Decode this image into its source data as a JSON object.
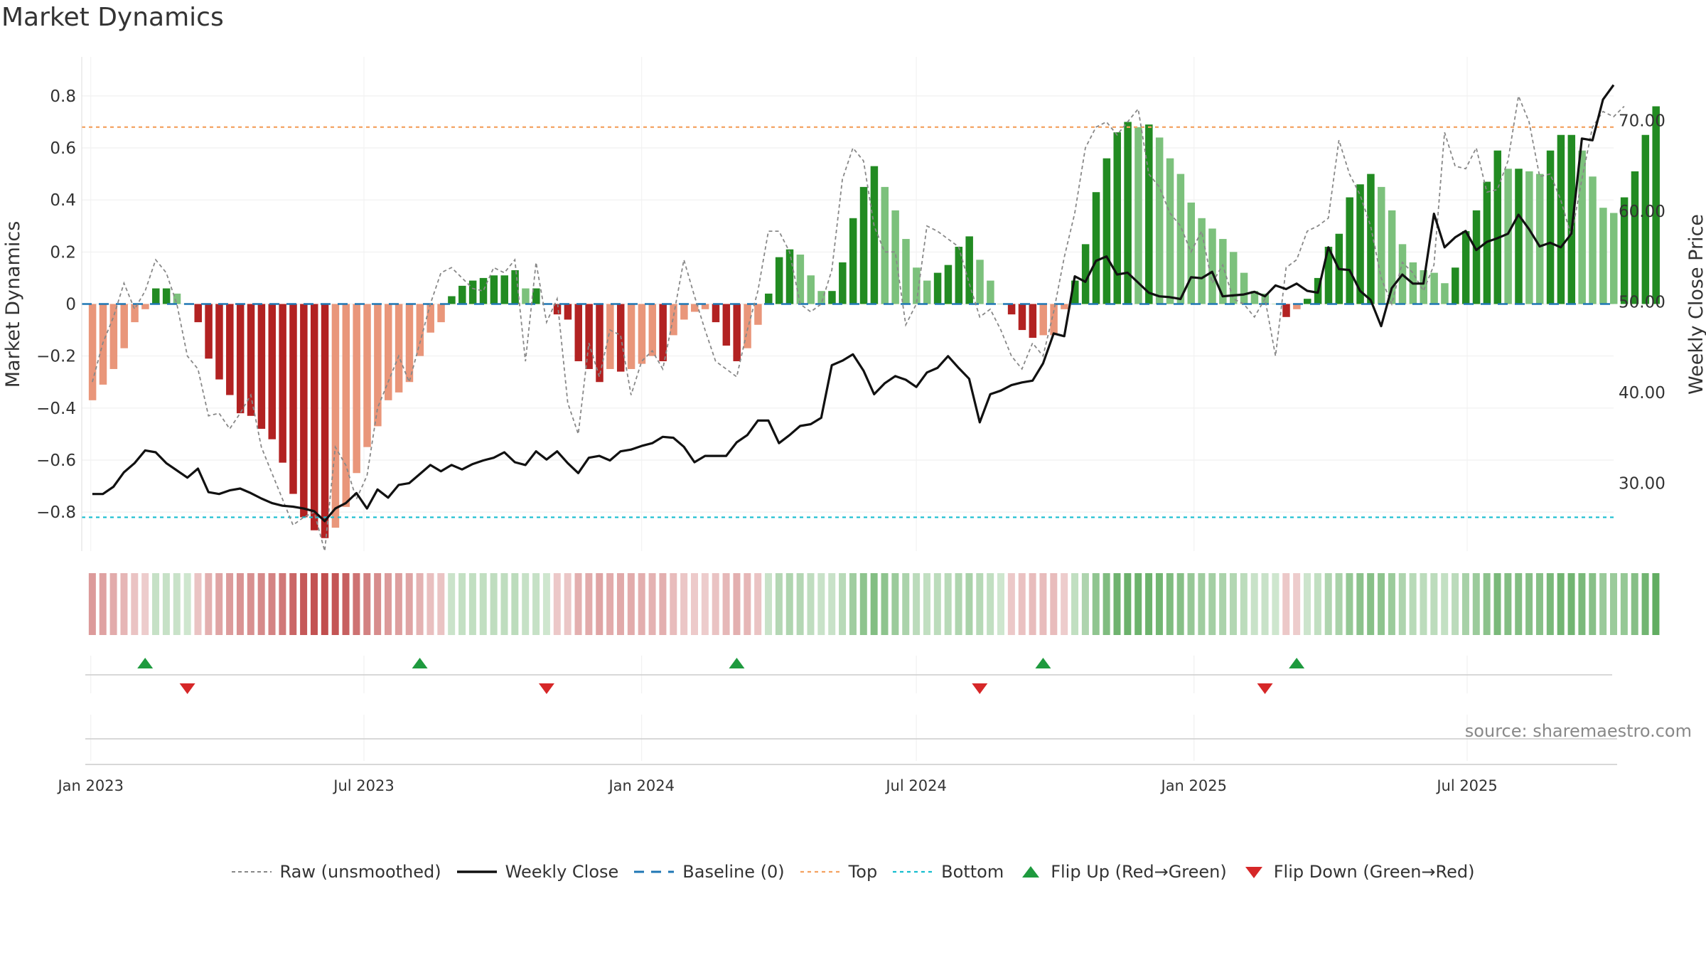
{
  "title": "Market Dynamics",
  "source_text": "source: sharemaestro.com",
  "colors": {
    "dark_green": "#228B22",
    "light_green": "#7CC17C",
    "dark_red": "#B22222",
    "light_red": "#E9967A",
    "weekly_close": "#111111",
    "raw": "#888888",
    "baseline": "#1f77b4",
    "top": "#f4a261",
    "bottom": "#17becf",
    "flip_up": "#1e9a3e",
    "flip_down": "#d62728"
  },
  "legend": [
    {
      "label": "Raw (unsmoothed)",
      "style": "dotted-gray"
    },
    {
      "label": "Weekly Close",
      "style": "solid-black"
    },
    {
      "label": "Baseline (0)",
      "style": "dashed-blue"
    },
    {
      "label": "Top",
      "style": "dotted-orange"
    },
    {
      "label": "Bottom",
      "style": "dotted-cyan"
    },
    {
      "label": "Flip Up (Red→Green)",
      "style": "triangle-up-green"
    },
    {
      "label": "Flip Down (Green→Red)",
      "style": "triangle-down-red"
    }
  ],
  "chart_data": {
    "type": "bar",
    "title": "Market Dynamics",
    "ylabel": "Market Dynamics",
    "y2label": "Weekly Close Price",
    "ylim": [
      -0.95,
      0.95
    ],
    "y2lim": [
      22.5,
      77.0
    ],
    "yticks": [
      0.8,
      0.6,
      0.4,
      0.2,
      0,
      -0.2,
      -0.4,
      -0.6,
      -0.8
    ],
    "ytick_labels": [
      "0.8",
      "0.6",
      "0.4",
      "0.2",
      "0",
      "−0.2",
      "−0.4",
      "−0.6",
      "−0.8"
    ],
    "y2ticks": [
      70,
      60,
      50,
      40,
      30
    ],
    "y2tick_labels": [
      "70.00",
      "60.00",
      "50.00",
      "40.00",
      "30.00"
    ],
    "x_start": "2022-12-26",
    "x_end": "2025-10-06",
    "xticks": [
      {
        "date": "2023-01-01",
        "label": "Jan 2023"
      },
      {
        "date": "2023-07-01",
        "label": "Jul 2023"
      },
      {
        "date": "2024-01-01",
        "label": "Jan 2024"
      },
      {
        "date": "2024-07-01",
        "label": "Jul 2024"
      },
      {
        "date": "2025-01-01",
        "label": "Jan 2025"
      },
      {
        "date": "2025-07-01",
        "label": "Jul 2025"
      }
    ],
    "top_level": 0.68,
    "bottom_level": -0.82,
    "baseline": 0,
    "grid": true,
    "legend_position": "bottom-center",
    "series": [
      {
        "name": "Market Dynamics",
        "segments": [
          {
            "start": "2023-01-02",
            "values": [
              -0.37,
              -0.31,
              -0.25,
              -0.17,
              -0.07,
              -0.02,
              0.06,
              0.06,
              0.04,
              0.0,
              -0.07,
              -0.21,
              -0.29,
              -0.35,
              -0.42,
              -0.43,
              -0.48,
              -0.52,
              -0.61,
              -0.73,
              -0.82,
              -0.87,
              -0.9,
              -0.86,
              -0.78,
              -0.65,
              -0.55,
              -0.47,
              -0.37,
              -0.34,
              -0.3,
              -0.2,
              -0.11,
              -0.07,
              0.03,
              0.07,
              0.09,
              0.1,
              0.11,
              0.11,
              0.13,
              0.06,
              0.06,
              0.0,
              -0.04,
              -0.06,
              -0.22,
              -0.25,
              -0.3,
              -0.25,
              -0.26,
              -0.25,
              -0.23,
              -0.2,
              -0.22,
              -0.12,
              -0.06,
              -0.03,
              -0.02,
              -0.07,
              -0.16,
              -0.22,
              -0.17,
              -0.08,
              0.04,
              0.18,
              0.21,
              0.19,
              0.11,
              0.05,
              0.05,
              0.16,
              0.33,
              0.45,
              0.53,
              0.45,
              0.36,
              0.25,
              0.14,
              0.09,
              0.12,
              0.15,
              0.22,
              0.26,
              0.17,
              0.09,
              0.0,
              -0.04,
              -0.1,
              -0.13,
              -0.12,
              -0.12,
              -0.02,
              0.09,
              0.23,
              0.43,
              0.56,
              0.66,
              0.7,
              0.68,
              0.69,
              0.64,
              0.56,
              0.5,
              0.39,
              0.33,
              0.29,
              0.25,
              0.2,
              0.12,
              0.05,
              0.04,
              0.0,
              -0.05,
              -0.02,
              0.02,
              0.1,
              0.22,
              0.27,
              0.41,
              0.46,
              0.5,
              0.45,
              0.36,
              0.23,
              0.16,
              0.13,
              0.12,
              0.08,
              0.14,
              0.28,
              0.36,
              0.47,
              0.59,
              0.52,
              0.52,
              0.51,
              0.5,
              0.59,
              0.65,
              0.65,
              0.59,
              0.49,
              0.37,
              0.35,
              0.41,
              0.51,
              0.65,
              0.76
            ]
          }
        ]
      },
      {
        "name": "Raw (unsmoothed)",
        "segments": [
          {
            "start": "2023-01-02",
            "values": [
              -0.3,
              -0.15,
              -0.05,
              0.08,
              -0.02,
              0.05,
              0.17,
              0.12,
              0.0,
              -0.2,
              -0.25,
              -0.43,
              -0.42,
              -0.48,
              -0.42,
              -0.35,
              -0.55,
              -0.65,
              -0.75,
              -0.85,
              -0.82,
              -0.8,
              -0.95,
              -0.55,
              -0.62,
              -0.75,
              -0.66,
              -0.4,
              -0.3,
              -0.2,
              -0.3,
              -0.15,
              0.0,
              0.12,
              0.14,
              0.1,
              0.06,
              0.05,
              0.14,
              0.12,
              0.17,
              -0.22,
              0.16,
              -0.07,
              0.02,
              -0.38,
              -0.5,
              -0.15,
              -0.28,
              -0.1,
              -0.12,
              -0.35,
              -0.22,
              -0.18,
              -0.25,
              -0.05,
              0.17,
              0.03,
              -0.1,
              -0.22,
              -0.25,
              -0.28,
              -0.1,
              0.05,
              0.28,
              0.28,
              0.2,
              0.0,
              -0.03,
              0.0,
              0.13,
              0.48,
              0.6,
              0.55,
              0.3,
              0.2,
              0.2,
              -0.08,
              0.0,
              0.3,
              0.28,
              0.25,
              0.22,
              0.08,
              -0.05,
              -0.02,
              -0.1,
              -0.2,
              -0.25,
              -0.15,
              -0.2,
              -0.03,
              0.18,
              0.35,
              0.6,
              0.68,
              0.7,
              0.65,
              0.7,
              0.75,
              0.5,
              0.45,
              0.35,
              0.3,
              0.2,
              0.28,
              0.08,
              0.15,
              0.02,
              0.0,
              -0.05,
              0.02,
              -0.2,
              0.14,
              0.17,
              0.28,
              0.3,
              0.33,
              0.63,
              0.5,
              0.42,
              0.3,
              0.1,
              0.0,
              0.16,
              0.12,
              0.05,
              0.15,
              0.66,
              0.53,
              0.52,
              0.6,
              0.43,
              0.44,
              0.55,
              0.8,
              0.7,
              0.49,
              0.5,
              0.4,
              0.26,
              0.48,
              0.68,
              0.74,
              0.72,
              0.76
            ]
          }
        ]
      },
      {
        "name": "Weekly Close",
        "segments": [
          {
            "start": "2023-01-02",
            "values": [
              28.8,
              28.8,
              29.6,
              31.2,
              32.2,
              33.6,
              33.4,
              32.2,
              31.4,
              30.6,
              31.6,
              29.0,
              28.8,
              29.2,
              29.4,
              28.9,
              28.3,
              27.8,
              27.5,
              27.4,
              27.2,
              26.9,
              25.8,
              27.2,
              27.8,
              28.9,
              27.2,
              29.3,
              28.4,
              29.8,
              30.0,
              31.0,
              32.0,
              31.3,
              32.0,
              31.5,
              32.1,
              32.5,
              32.8,
              33.4,
              32.3,
              32.0,
              33.5,
              32.6,
              33.5,
              32.2,
              31.1,
              32.8,
              33.0,
              32.5,
              33.5,
              33.7,
              34.1,
              34.4,
              35.1,
              35.0,
              34.0,
              32.3,
              33.0,
              33.0,
              33.0,
              34.5,
              35.3,
              36.9,
              36.9,
              34.4,
              35.3,
              36.3,
              36.5,
              37.2,
              43.0,
              43.5,
              44.2,
              42.4,
              39.8,
              41.0,
              41.8,
              41.4,
              40.6,
              42.2,
              42.7,
              44.0,
              42.7,
              41.5,
              36.7,
              39.8,
              40.2,
              40.8,
              41.1,
              41.3,
              43.2,
              46.5,
              46.2,
              52.8,
              52.2,
              54.5,
              55.0,
              53.0,
              53.2,
              52.1,
              51.0,
              50.6,
              50.5,
              50.3,
              52.7,
              52.6,
              53.3,
              50.6,
              50.7,
              50.8,
              51.1,
              50.6,
              51.8,
              51.4,
              52.0,
              51.2,
              51.0,
              56.0,
              53.6,
              53.5,
              51.2,
              50.2,
              47.3,
              51.5,
              53.0,
              52.0,
              52.0,
              59.7,
              56.0,
              57.1,
              57.8,
              55.7,
              56.6,
              57.0,
              57.5,
              59.6,
              58.0,
              56.1,
              56.5,
              56.0,
              57.5,
              68.0,
              67.8,
              72.3,
              73.9
            ]
          }
        ]
      }
    ],
    "flips_up": [
      "2023-02-06",
      "2023-08-07",
      "2024-03-04",
      "2024-09-23",
      "2025-03-10"
    ],
    "flips_down": [
      "2023-03-06",
      "2023-10-30",
      "2024-08-12",
      "2025-02-17"
    ]
  }
}
